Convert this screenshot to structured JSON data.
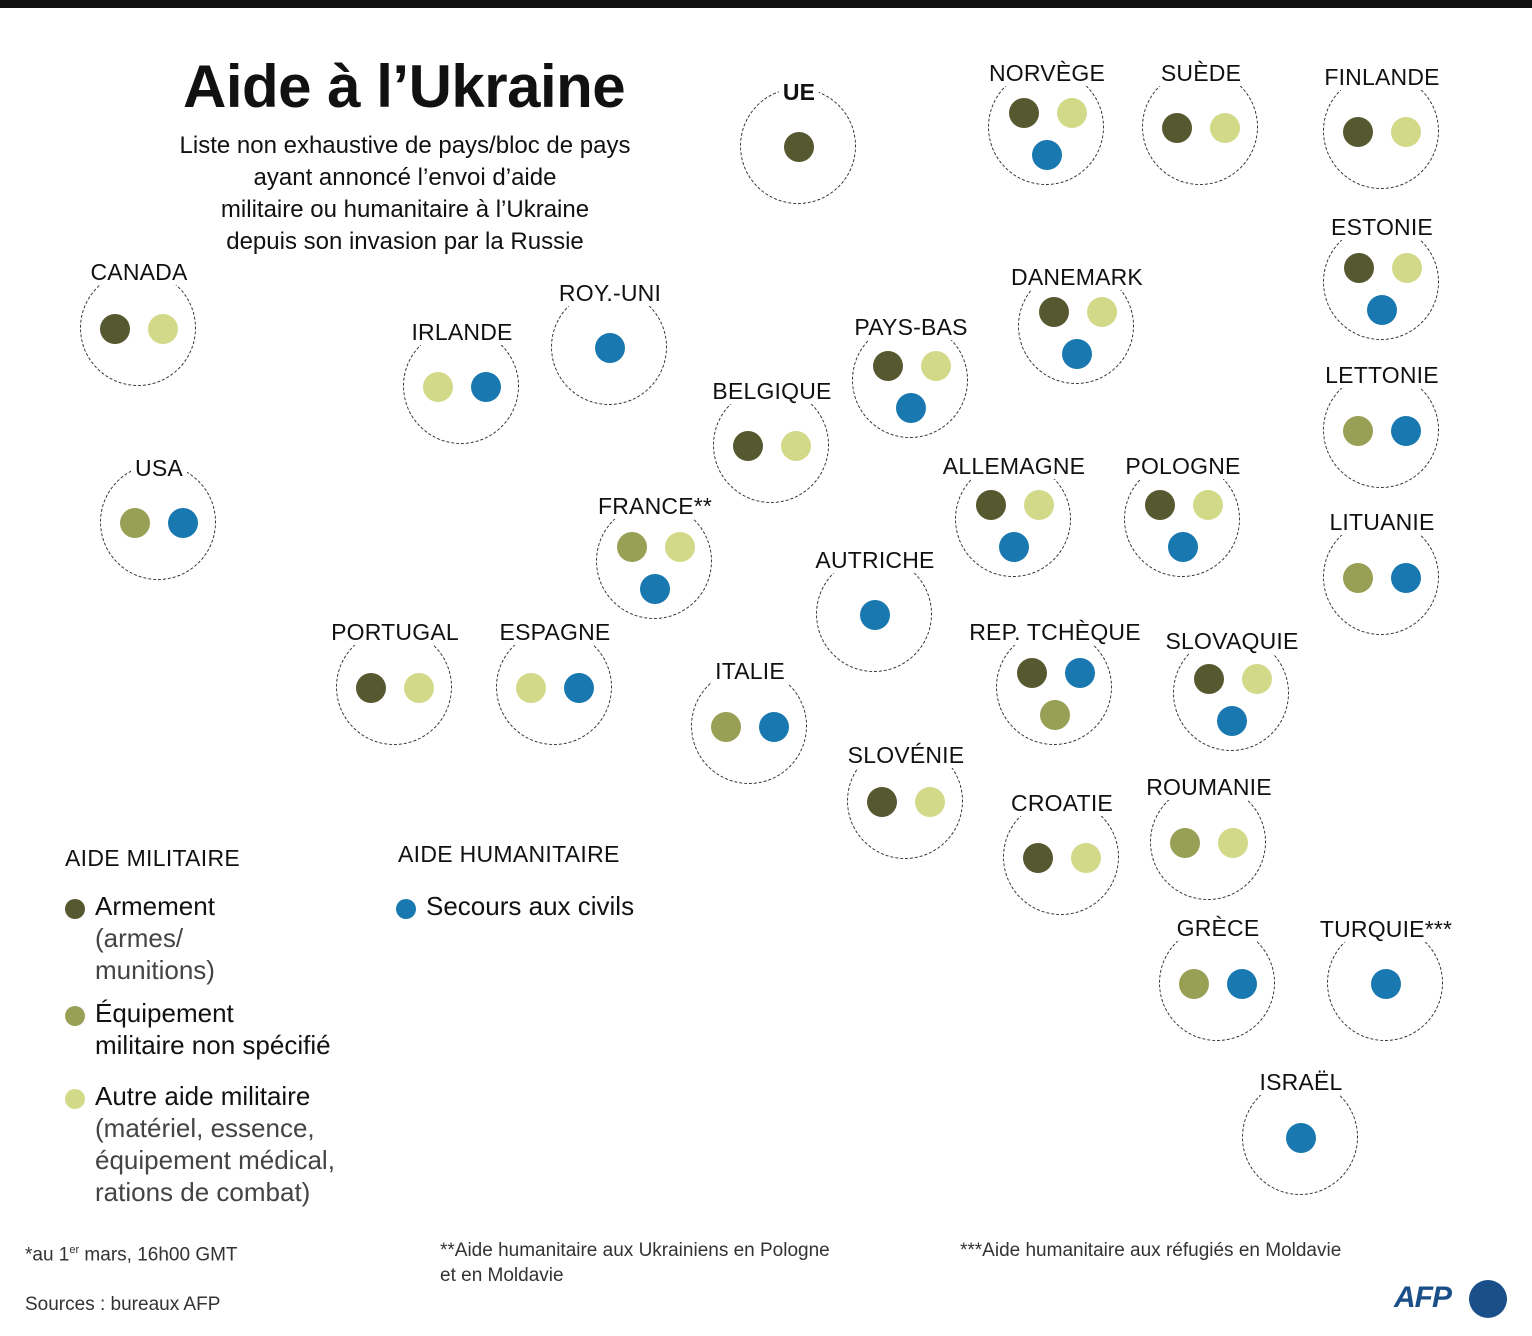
{
  "title": "Aide à l’Ukraine",
  "subtitle": [
    "Liste non exhaustive de pays/bloc de pays",
    "ayant annoncé l’envoi d’aide",
    "militaire ou humanitaire à l’Ukraine",
    "depuis son invasion par la Russie"
  ],
  "colors": {
    "armement": "#56582f",
    "equipement": "#97a055",
    "autre": "#d2da8a",
    "civils": "#1a78b0"
  },
  "countries": [
    {
      "id": "ue",
      "label": "UE",
      "aid": [
        "armement"
      ]
    },
    {
      "id": "norvege",
      "label": "NORVÈGE",
      "aid": [
        "armement",
        "autre",
        "civils"
      ]
    },
    {
      "id": "suede",
      "label": "SUÈDE",
      "aid": [
        "armement",
        "autre"
      ]
    },
    {
      "id": "finlande",
      "label": "FINLANDE",
      "aid": [
        "armement",
        "autre"
      ]
    },
    {
      "id": "estonie",
      "label": "ESTONIE",
      "aid": [
        "armement",
        "autre",
        "civils"
      ]
    },
    {
      "id": "lettonie",
      "label": "LETTONIE",
      "aid": [
        "equipement",
        "civils"
      ]
    },
    {
      "id": "lituanie",
      "label": "LITUANIE",
      "aid": [
        "equipement",
        "civils"
      ]
    },
    {
      "id": "canada",
      "label": "CANADA",
      "aid": [
        "armement",
        "autre"
      ]
    },
    {
      "id": "usa",
      "label": "USA",
      "aid": [
        "equipement",
        "civils"
      ]
    },
    {
      "id": "irlande",
      "label": "IRLANDE",
      "aid": [
        "autre",
        "civils"
      ]
    },
    {
      "id": "royuni",
      "label": "ROY.-UNI",
      "aid": [
        "civils"
      ]
    },
    {
      "id": "danemark",
      "label": "DANEMARK",
      "aid": [
        "armement",
        "autre",
        "civils"
      ]
    },
    {
      "id": "paysbas",
      "label": "PAYS-BAS",
      "aid": [
        "armement",
        "autre",
        "civils"
      ]
    },
    {
      "id": "belgique",
      "label": "BELGIQUE",
      "aid": [
        "armement",
        "autre"
      ]
    },
    {
      "id": "allemagne",
      "label": "ALLEMAGNE",
      "aid": [
        "armement",
        "autre",
        "civils"
      ]
    },
    {
      "id": "pologne",
      "label": "POLOGNE",
      "aid": [
        "armement",
        "autre",
        "civils"
      ]
    },
    {
      "id": "france",
      "label": "FRANCE**",
      "aid": [
        "equipement",
        "autre",
        "civils"
      ]
    },
    {
      "id": "autriche",
      "label": "AUTRICHE",
      "aid": [
        "civils"
      ]
    },
    {
      "id": "portugal",
      "label": "PORTUGAL",
      "aid": [
        "armement",
        "autre"
      ]
    },
    {
      "id": "espagne",
      "label": "ESPAGNE",
      "aid": [
        "autre",
        "civils"
      ]
    },
    {
      "id": "italie",
      "label": "ITALIE",
      "aid": [
        "equipement",
        "civils"
      ]
    },
    {
      "id": "reptcheque",
      "label": "REP. TCHÈQUE",
      "aid": [
        "armement",
        "civils",
        "equipement"
      ]
    },
    {
      "id": "slovaquie",
      "label": "SLOVAQUIE",
      "aid": [
        "armement",
        "autre",
        "civils"
      ]
    },
    {
      "id": "slovenie",
      "label": "SLOVÉNIE",
      "aid": [
        "armement",
        "autre"
      ]
    },
    {
      "id": "croatie",
      "label": "CROATIE",
      "aid": [
        "armement",
        "autre"
      ]
    },
    {
      "id": "roumanie",
      "label": "ROUMANIE",
      "aid": [
        "equipement",
        "autre"
      ]
    },
    {
      "id": "grece",
      "label": "GRÈCE",
      "aid": [
        "equipement",
        "civils"
      ]
    },
    {
      "id": "turquie",
      "label": "TURQUIE***",
      "aid": [
        "civils"
      ]
    },
    {
      "id": "israel",
      "label": "ISRAËL",
      "aid": [
        "civils"
      ]
    }
  ],
  "legend": {
    "military_head": "AIDE MILITAIRE",
    "humanitarian_head": "AIDE HUMANITAIRE",
    "armement": {
      "main": "Armement",
      "sub1": "(armes/",
      "sub2": "munitions)"
    },
    "equipement": {
      "main1": "Équipement",
      "main2": "militaire non spécifié"
    },
    "autre": {
      "main": "Autre aide militaire",
      "sub1": "(matériel, essence,",
      "sub2": "équipement médical,",
      "sub3": "rations de combat)"
    },
    "civils": {
      "main": "Secours aux civils"
    }
  },
  "footnotes": {
    "date_prefix": "*au 1",
    "date_sup": "er",
    "date_suffix": " mars, 16h00 GMT",
    "france_1": "**Aide humanitaire aux Ukrainiens en Pologne",
    "france_2": "et en Moldavie",
    "turquie": "***Aide humanitaire aux réfugiés en Moldavie",
    "sources": "Sources : bureaux AFP"
  },
  "logo": "AFP"
}
